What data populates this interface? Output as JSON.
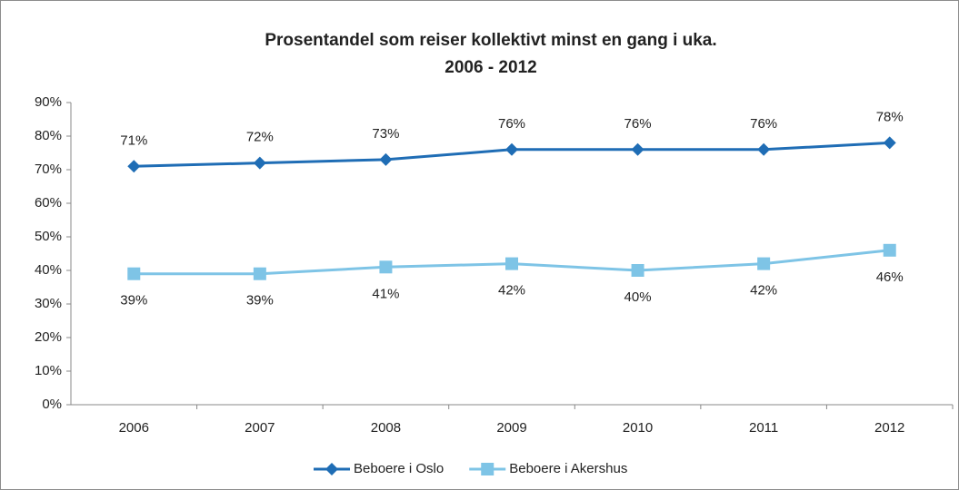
{
  "chart_data": {
    "type": "line",
    "title": "Prosentandel som reiser kollektivt minst en gang i uka.",
    "subtitle": "2006 - 2012",
    "categories": [
      "2006",
      "2007",
      "2008",
      "2009",
      "2010",
      "2011",
      "2012"
    ],
    "series": [
      {
        "name": "Beboere i Oslo",
        "color": "#1f6db5",
        "marker": "diamond",
        "values": [
          71,
          72,
          73,
          76,
          76,
          76,
          78
        ],
        "value_labels": [
          "71%",
          "72%",
          "73%",
          "76%",
          "76%",
          "76%",
          "78%"
        ]
      },
      {
        "name": "Beboere i Akershus",
        "color": "#7ec4e6",
        "marker": "square",
        "values": [
          39,
          39,
          41,
          42,
          40,
          42,
          46
        ],
        "value_labels": [
          "39%",
          "39%",
          "41%",
          "42%",
          "40%",
          "42%",
          "46%"
        ]
      }
    ],
    "ylim": [
      0,
      90
    ],
    "yticks": [
      {
        "value": 0,
        "label": "0%"
      },
      {
        "value": 10,
        "label": "10%"
      },
      {
        "value": 20,
        "label": "20%"
      },
      {
        "value": 30,
        "label": "30%"
      },
      {
        "value": 40,
        "label": "40%"
      },
      {
        "value": 50,
        "label": "50%"
      },
      {
        "value": 60,
        "label": "60%"
      },
      {
        "value": 70,
        "label": "70%"
      },
      {
        "value": 80,
        "label": "80%"
      },
      {
        "value": 90,
        "label": "90%"
      }
    ],
    "grid": false,
    "legend": "bottom"
  }
}
